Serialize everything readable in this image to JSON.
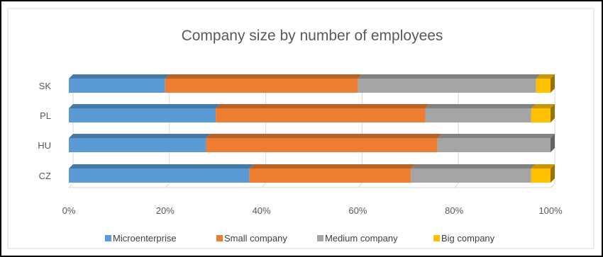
{
  "chart_data": {
    "type": "bar",
    "orientation": "horizontal",
    "stacked": "100%",
    "title": "Company size by number of employees",
    "categories": [
      "CZ",
      "HU",
      "PL",
      "SK"
    ],
    "series": [
      {
        "name": "Microenterprise",
        "color": "#5B9BD5",
        "values": [
          37.5,
          28.5,
          30.5,
          20
        ]
      },
      {
        "name": "Small company",
        "color": "#ED7D31",
        "values": [
          33.5,
          48,
          43.5,
          40
        ]
      },
      {
        "name": "Medium company",
        "color": "#A5A5A5",
        "values": [
          25,
          23.5,
          22,
          37
        ]
      },
      {
        "name": "Big company",
        "color": "#FFC000",
        "values": [
          4,
          0,
          4,
          3
        ]
      }
    ],
    "xlim": [
      0,
      100
    ],
    "x_ticks": [
      "0%",
      "20%",
      "40%",
      "60%",
      "80%",
      "100%"
    ],
    "grid": true,
    "legend": "bottom"
  }
}
